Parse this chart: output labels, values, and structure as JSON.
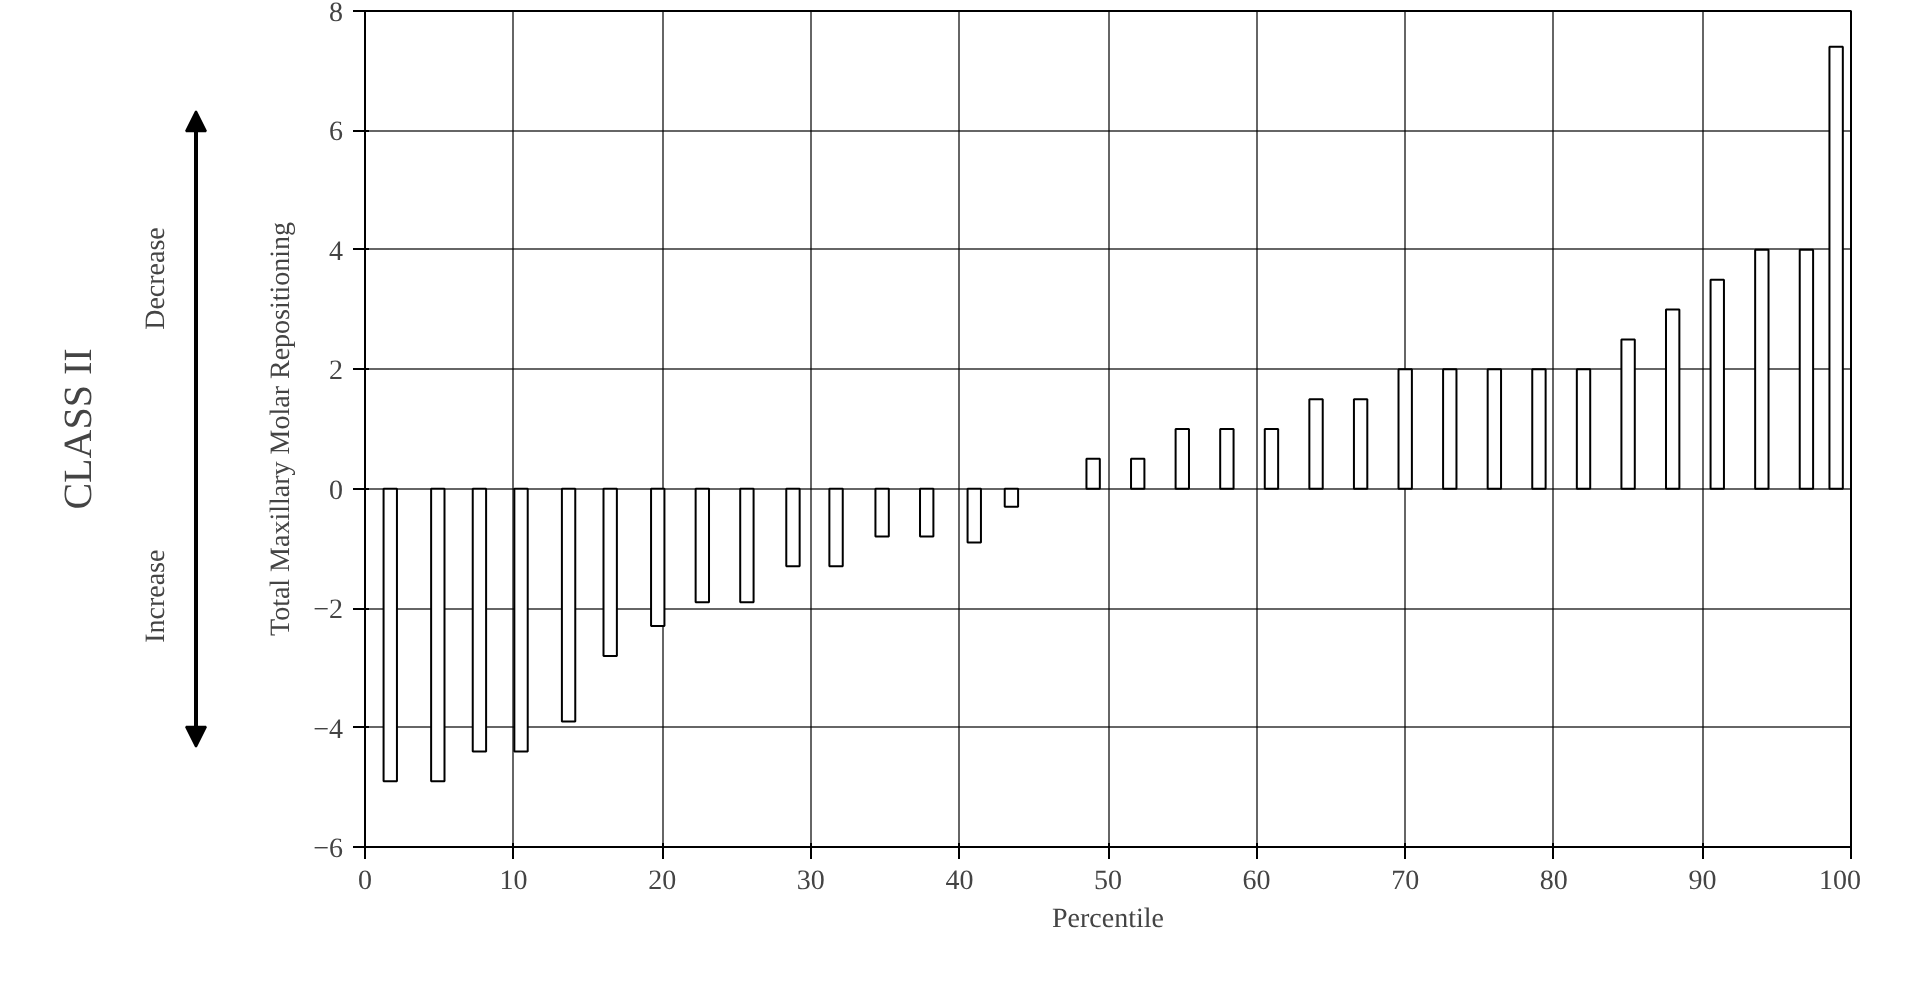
{
  "chart_data": {
    "type": "bar",
    "xlabel": "Percentile",
    "ylabel": "Total Maxillary Molar Repositioning",
    "annotations": [
      "CLASS II",
      "Increase",
      "Decrease"
    ],
    "x": [
      1.7,
      4.9,
      7.7,
      10.5,
      13.7,
      16.5,
      19.7,
      22.7,
      25.7,
      28.8,
      31.7,
      34.8,
      37.8,
      41,
      43.5,
      49,
      52,
      55,
      58,
      61,
      64,
      67,
      70,
      73,
      76,
      79,
      82,
      85,
      88,
      91,
      94,
      97,
      99
    ],
    "values": [
      -4.9,
      -4.9,
      -4.4,
      -4.4,
      -3.9,
      -2.8,
      -2.3,
      -1.9,
      -1.9,
      -1.3,
      -1.3,
      -0.8,
      -0.8,
      -0.9,
      -0.3,
      0.5,
      0.5,
      1,
      1,
      1,
      1.5,
      1.5,
      2,
      2,
      2,
      2,
      2,
      2.5,
      3,
      3.5,
      4,
      4,
      7.4
    ],
    "color": "#000000",
    "xlim": [
      0,
      100
    ],
    "ylim": [
      -6,
      8
    ],
    "xticks": [
      0,
      10,
      20,
      30,
      40,
      50,
      60,
      70,
      80,
      90,
      100
    ],
    "yticks": [
      -6,
      -4,
      -2,
      0,
      2,
      4,
      6,
      8
    ],
    "grid": true
  }
}
